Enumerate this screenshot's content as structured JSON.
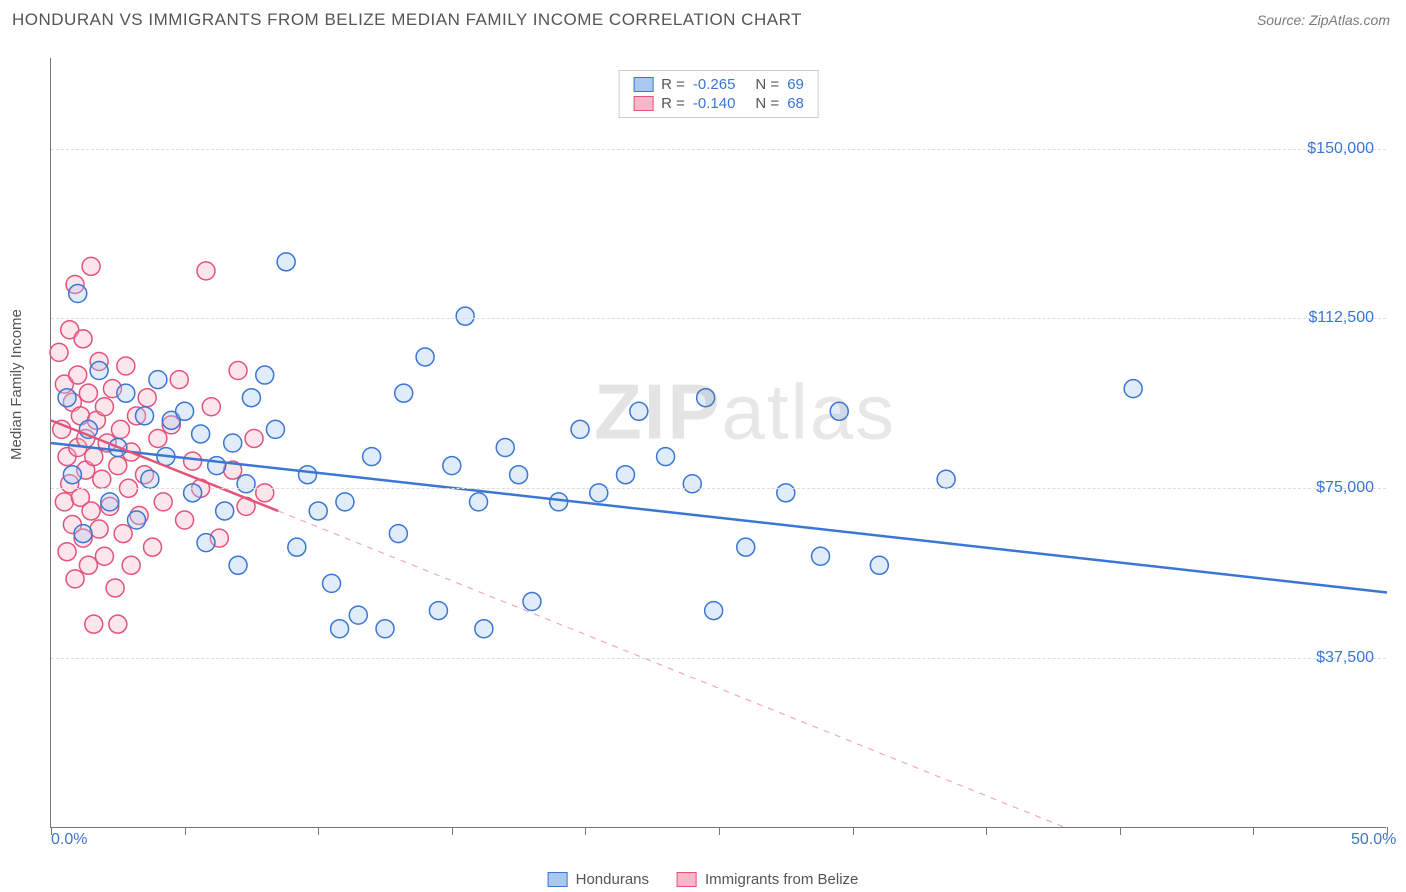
{
  "header": {
    "title": "HONDURAN VS IMMIGRANTS FROM BELIZE MEDIAN FAMILY INCOME CORRELATION CHART",
    "source": "Source: ZipAtlas.com"
  },
  "chart": {
    "type": "scatter",
    "ylabel": "Median Family Income",
    "watermark_prefix": "ZIP",
    "watermark_suffix": "atlas",
    "background_color": "#ffffff",
    "grid_color": "#dddddd",
    "axis_color": "#777777",
    "xlim": [
      0,
      50
    ],
    "ylim": [
      0,
      170000
    ],
    "xtick_positions": [
      0,
      5,
      10,
      15,
      20,
      25,
      30,
      35,
      40,
      45,
      50
    ],
    "xtick_labels": {
      "0": "0.0%",
      "50": "50.0%"
    },
    "ytick_positions": [
      37500,
      75000,
      112500,
      150000
    ],
    "ytick_labels": [
      "$37,500",
      "$75,000",
      "$112,500",
      "$150,000"
    ],
    "marker_radius": 9,
    "marker_stroke_width": 1.5,
    "marker_fill_opacity": 0.35,
    "line_width": 2.5,
    "series": [
      {
        "name": "Hondurans",
        "color_stroke": "#3a76d6",
        "color_fill": "#a9c8f0",
        "R": "-0.265",
        "N": "69",
        "trend_solid": {
          "x1": 0,
          "y1": 85000,
          "x2": 50,
          "y2": 52000
        },
        "points": [
          [
            0.6,
            95000
          ],
          [
            0.8,
            78000
          ],
          [
            1.0,
            118000
          ],
          [
            1.2,
            65000
          ],
          [
            1.4,
            88000
          ],
          [
            1.8,
            101000
          ],
          [
            2.2,
            72000
          ],
          [
            2.5,
            84000
          ],
          [
            2.8,
            96000
          ],
          [
            3.2,
            68000
          ],
          [
            3.5,
            91000
          ],
          [
            3.7,
            77000
          ],
          [
            4.0,
            99000
          ],
          [
            4.3,
            82000
          ],
          [
            4.5,
            90000
          ],
          [
            5.0,
            92000
          ],
          [
            5.3,
            74000
          ],
          [
            5.6,
            87000
          ],
          [
            5.8,
            63000
          ],
          [
            6.2,
            80000
          ],
          [
            6.5,
            70000
          ],
          [
            6.8,
            85000
          ],
          [
            7.0,
            58000
          ],
          [
            7.3,
            76000
          ],
          [
            7.5,
            95000
          ],
          [
            8.0,
            100000
          ],
          [
            8.4,
            88000
          ],
          [
            8.8,
            125000
          ],
          [
            9.2,
            62000
          ],
          [
            9.6,
            78000
          ],
          [
            10.0,
            70000
          ],
          [
            10.5,
            54000
          ],
          [
            10.8,
            44000
          ],
          [
            11.0,
            72000
          ],
          [
            11.5,
            47000
          ],
          [
            12.0,
            82000
          ],
          [
            12.5,
            44000
          ],
          [
            13.0,
            65000
          ],
          [
            13.2,
            96000
          ],
          [
            14.0,
            104000
          ],
          [
            14.5,
            48000
          ],
          [
            15.0,
            80000
          ],
          [
            15.5,
            113000
          ],
          [
            16.0,
            72000
          ],
          [
            16.2,
            44000
          ],
          [
            17.0,
            84000
          ],
          [
            17.5,
            78000
          ],
          [
            18.0,
            50000
          ],
          [
            19.0,
            72000
          ],
          [
            19.8,
            88000
          ],
          [
            20.5,
            74000
          ],
          [
            21.5,
            78000
          ],
          [
            22.0,
            92000
          ],
          [
            23.0,
            82000
          ],
          [
            24.0,
            76000
          ],
          [
            24.5,
            95000
          ],
          [
            24.8,
            48000
          ],
          [
            26.0,
            62000
          ],
          [
            27.5,
            74000
          ],
          [
            28.8,
            60000
          ],
          [
            29.5,
            92000
          ],
          [
            31.0,
            58000
          ],
          [
            33.5,
            77000
          ],
          [
            40.5,
            97000
          ]
        ]
      },
      {
        "name": "Immigrants from Belize",
        "color_stroke": "#e5537a",
        "color_fill": "#f7b7c9",
        "R": "-0.140",
        "N": "68",
        "trend_solid": {
          "x1": 0,
          "y1": 90000,
          "x2": 8.5,
          "y2": 70000
        },
        "trend_dashed": {
          "x1": 8.5,
          "y1": 70000,
          "x2": 38,
          "y2": 0
        },
        "points": [
          [
            0.3,
            105000
          ],
          [
            0.4,
            88000
          ],
          [
            0.5,
            72000
          ],
          [
            0.5,
            98000
          ],
          [
            0.6,
            61000
          ],
          [
            0.6,
            82000
          ],
          [
            0.7,
            110000
          ],
          [
            0.7,
            76000
          ],
          [
            0.8,
            94000
          ],
          [
            0.8,
            67000
          ],
          [
            0.9,
            120000
          ],
          [
            0.9,
            55000
          ],
          [
            1.0,
            84000
          ],
          [
            1.0,
            100000
          ],
          [
            1.1,
            73000
          ],
          [
            1.1,
            91000
          ],
          [
            1.2,
            64000
          ],
          [
            1.2,
            108000
          ],
          [
            1.3,
            79000
          ],
          [
            1.3,
            86000
          ],
          [
            1.4,
            58000
          ],
          [
            1.4,
            96000
          ],
          [
            1.5,
            70000
          ],
          [
            1.5,
            124000
          ],
          [
            1.6,
            82000
          ],
          [
            1.6,
            45000
          ],
          [
            1.7,
            90000
          ],
          [
            1.8,
            66000
          ],
          [
            1.8,
            103000
          ],
          [
            1.9,
            77000
          ],
          [
            2.0,
            93000
          ],
          [
            2.0,
            60000
          ],
          [
            2.1,
            85000
          ],
          [
            2.2,
            71000
          ],
          [
            2.3,
            97000
          ],
          [
            2.4,
            53000
          ],
          [
            2.5,
            80000
          ],
          [
            2.5,
            45000
          ],
          [
            2.6,
            88000
          ],
          [
            2.7,
            65000
          ],
          [
            2.8,
            102000
          ],
          [
            2.9,
            75000
          ],
          [
            3.0,
            83000
          ],
          [
            3.0,
            58000
          ],
          [
            3.2,
            91000
          ],
          [
            3.3,
            69000
          ],
          [
            3.5,
            78000
          ],
          [
            3.6,
            95000
          ],
          [
            3.8,
            62000
          ],
          [
            4.0,
            86000
          ],
          [
            4.2,
            72000
          ],
          [
            4.5,
            89000
          ],
          [
            4.8,
            99000
          ],
          [
            5.0,
            68000
          ],
          [
            5.3,
            81000
          ],
          [
            5.6,
            75000
          ],
          [
            5.8,
            123000
          ],
          [
            6.0,
            93000
          ],
          [
            6.3,
            64000
          ],
          [
            6.8,
            79000
          ],
          [
            7.0,
            101000
          ],
          [
            7.3,
            71000
          ],
          [
            7.6,
            86000
          ],
          [
            8.0,
            74000
          ]
        ]
      }
    ],
    "legend_bottom": [
      "Hondurans",
      "Immigrants from Belize"
    ]
  }
}
